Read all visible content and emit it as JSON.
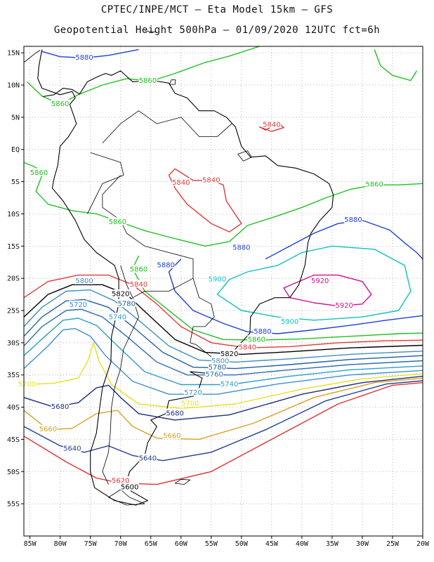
{
  "header": {
    "line1": "CPTEC/INPE/MCT –  Eta Model 15km – GFS",
    "line2": "Geopotential Height 500hPa – 01/09/2020 12UTC fct=6h"
  },
  "axes": {
    "lat_labels": [
      "15N",
      "10N",
      "5N",
      "EQ",
      "5S",
      "10S",
      "15S",
      "20S",
      "25S",
      "30S",
      "35S",
      "40S",
      "45S",
      "50S",
      "55S"
    ],
    "lat_values": [
      15,
      10,
      5,
      0,
      -5,
      -10,
      -15,
      -20,
      -25,
      -30,
      -35,
      -40,
      -45,
      -50,
      -55
    ],
    "lon_labels": [
      "85W",
      "80W",
      "75W",
      "70W",
      "65W",
      "60W",
      "55W",
      "50W",
      "45W",
      "40W",
      "35W",
      "30W",
      "25W",
      "20W"
    ],
    "lon_values": [
      -85,
      -80,
      -75,
      -70,
      -65,
      -60,
      -55,
      -50,
      -45,
      -40,
      -35,
      -30,
      -25,
      -20
    ],
    "lon_range": [
      -86,
      -20
    ],
    "lat_range": [
      -60,
      16
    ],
    "grid": "dotted"
  },
  "colors": {
    "5560": "#0b1f5c",
    "5620": "#e03030",
    "5640": "#1f3f8f",
    "5660": "#d9a020",
    "5680": "#1a2f7a",
    "5700": "#e8e020",
    "5720": "#3f8fd0",
    "5740": "#2aa0c8",
    "5760": "#2f6fb0",
    "5780": "#1f5f9f",
    "5800": "#3f8fc0",
    "5820": "#000000",
    "5840": "#e03a3a",
    "5860": "#20c020",
    "5880": "#2040d0",
    "5900": "#10c0c0",
    "5920": "#d0108a",
    "coast": "#000000"
  },
  "contour_labels": [
    {
      "text": "5880",
      "lon": -76,
      "lat": 14.2,
      "level": "5880"
    },
    {
      "text": "5860",
      "lon": -65.5,
      "lat": 10.6,
      "level": "5860"
    },
    {
      "text": "5860",
      "lon": -80,
      "lat": 7,
      "level": "5860"
    },
    {
      "text": "5840",
      "lon": -45,
      "lat": 3.8,
      "level": "5840"
    },
    {
      "text": "5860",
      "lon": -83.5,
      "lat": -3.7,
      "level": "5860"
    },
    {
      "text": "5840",
      "lon": -60,
      "lat": -5.2,
      "level": "5840"
    },
    {
      "text": "5840",
      "lon": -55,
      "lat": -4.8,
      "level": "5840"
    },
    {
      "text": "5860",
      "lon": -28,
      "lat": -5.5,
      "level": "5860"
    },
    {
      "text": "5860",
      "lon": -70.5,
      "lat": -11.3,
      "level": "5860"
    },
    {
      "text": "5880",
      "lon": -31.5,
      "lat": -11,
      "level": "5880"
    },
    {
      "text": "5880",
      "lon": -50,
      "lat": -15.3,
      "level": "5880"
    },
    {
      "text": "5860",
      "lon": -67,
      "lat": -18.7,
      "level": "5860"
    },
    {
      "text": "5880",
      "lon": -62.5,
      "lat": -18,
      "level": "5880"
    },
    {
      "text": "5800",
      "lon": -76,
      "lat": -20.5,
      "level": "5800"
    },
    {
      "text": "5840",
      "lon": -67,
      "lat": -21,
      "level": "5840"
    },
    {
      "text": "5900",
      "lon": -54,
      "lat": -20.2,
      "level": "5900"
    },
    {
      "text": "5920",
      "lon": -37,
      "lat": -20.5,
      "level": "5920"
    },
    {
      "text": "5820",
      "lon": -70,
      "lat": -22.5,
      "level": "5820"
    },
    {
      "text": "5720",
      "lon": -77,
      "lat": -24.2,
      "level": "5720"
    },
    {
      "text": "5780",
      "lon": -69,
      "lat": -24,
      "level": "5780"
    },
    {
      "text": "5740",
      "lon": -70.5,
      "lat": -26.1,
      "level": "5740"
    },
    {
      "text": "5920",
      "lon": -33,
      "lat": -24.3,
      "level": "5920"
    },
    {
      "text": "5900",
      "lon": -42,
      "lat": -26.8,
      "level": "5900"
    },
    {
      "text": "5880",
      "lon": -46.5,
      "lat": -28.3,
      "level": "5880"
    },
    {
      "text": "5860",
      "lon": -47.5,
      "lat": -29.6,
      "level": "5860"
    },
    {
      "text": "5840",
      "lon": -49,
      "lat": -30.8,
      "level": "5840"
    },
    {
      "text": "5820",
      "lon": -52,
      "lat": -31.8,
      "level": "5820"
    },
    {
      "text": "5800",
      "lon": -53.5,
      "lat": -32.9,
      "level": "5800"
    },
    {
      "text": "5780",
      "lon": -54,
      "lat": -33.9,
      "level": "5780"
    },
    {
      "text": "5760",
      "lon": -54.5,
      "lat": -35,
      "level": "5760"
    },
    {
      "text": "5740",
      "lon": -52,
      "lat": -36.5,
      "level": "5740"
    },
    {
      "text": "5720",
      "lon": -58,
      "lat": -37.8,
      "level": "5720"
    },
    {
      "text": "5700",
      "lon": -85.5,
      "lat": -36.5,
      "level": "5700"
    },
    {
      "text": "5700",
      "lon": -58.5,
      "lat": -39.5,
      "level": "5700"
    },
    {
      "text": "5680",
      "lon": -80,
      "lat": -40,
      "level": "5680"
    },
    {
      "text": "5680",
      "lon": -61,
      "lat": -41,
      "level": "5680"
    },
    {
      "text": "5660",
      "lon": -82,
      "lat": -43.5,
      "level": "5660"
    },
    {
      "text": "5660",
      "lon": -61.5,
      "lat": -44.5,
      "level": "5660"
    },
    {
      "text": "5640",
      "lon": -78,
      "lat": -46.5,
      "level": "5640"
    },
    {
      "text": "5640",
      "lon": -65.5,
      "lat": -48,
      "level": "5640"
    },
    {
      "text": "5620",
      "lon": -70,
      "lat": -51.5,
      "level": "5620"
    },
    {
      "text": "5600",
      "lon": -68.5,
      "lat": -52.5,
      "level": "5600"
    }
  ]
}
